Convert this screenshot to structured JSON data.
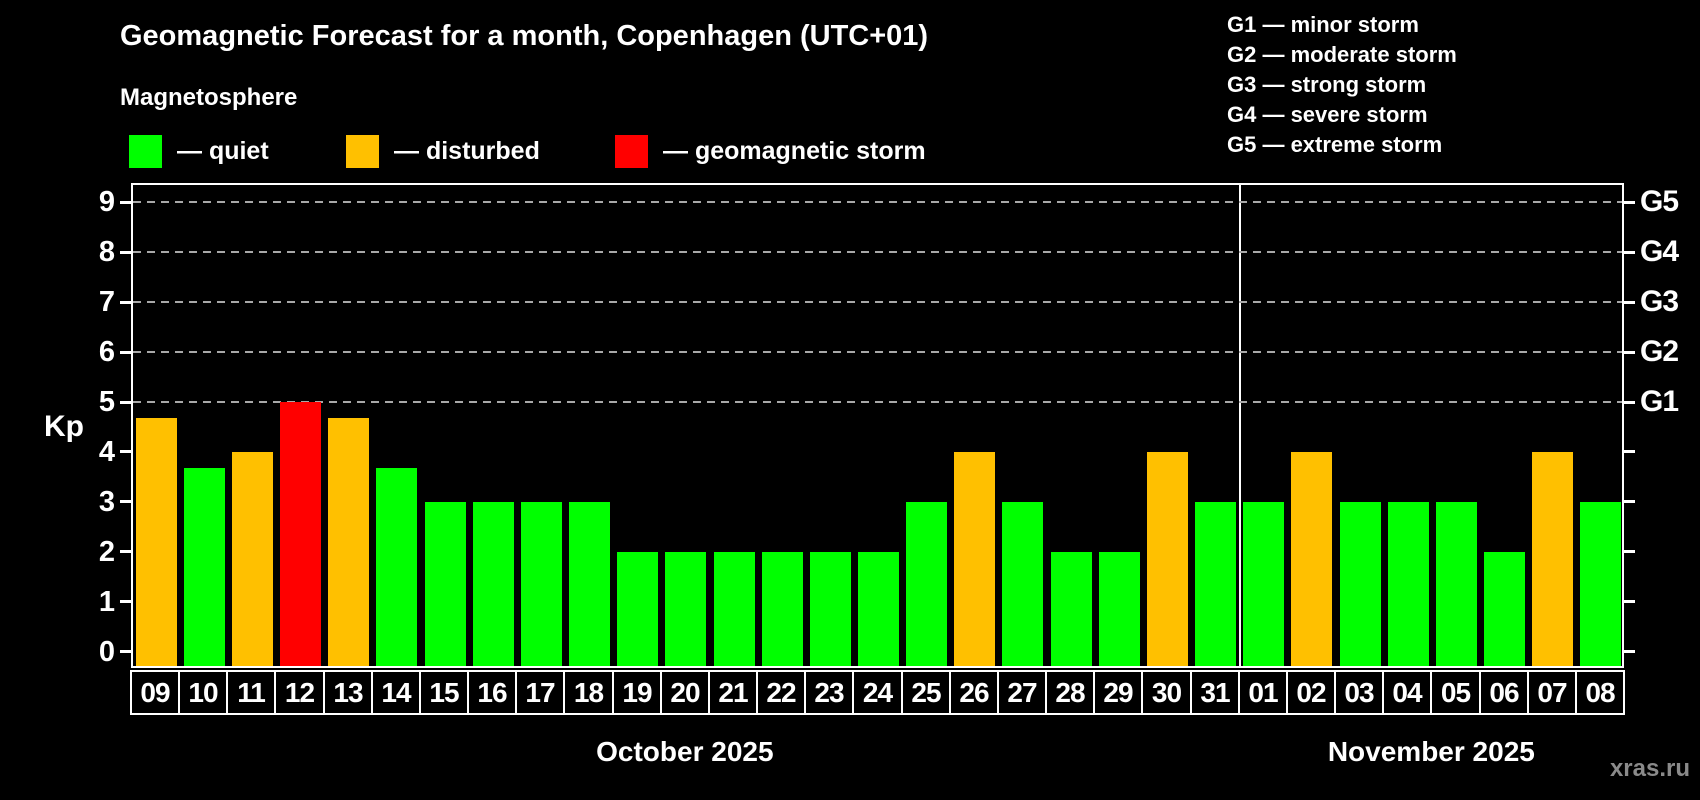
{
  "title": "Geomagnetic Forecast for a month, Copenhagen (UTC+01)",
  "subtitle": "Magnetosphere",
  "watermark": "xras.ru",
  "colors": {
    "quiet": "#00ff00",
    "disturbed": "#ffc000",
    "storm": "#ff0000",
    "axis": "#ffffff",
    "grid": "#a8a8a8",
    "background": "#000000",
    "text": "#ffffff",
    "watermark_color": "#8a8a8a"
  },
  "legend": {
    "items": [
      {
        "key": "quiet",
        "label": "— quiet",
        "color": "#00ff00"
      },
      {
        "key": "disturbed",
        "label": "— disturbed",
        "color": "#ffc000"
      },
      {
        "key": "storm",
        "label": "— geomagnetic storm",
        "color": "#ff0000"
      }
    ]
  },
  "storm_scale_legend": [
    "G1 — minor storm",
    "G2 — moderate storm",
    "G3 — strong storm",
    "G4 — severe storm",
    "G5 — extreme storm"
  ],
  "chart_data": {
    "type": "bar",
    "title": "Geomagnetic Forecast for a month, Copenhagen (UTC+01)",
    "ylabel": "Kp",
    "yticks": [
      0,
      1,
      2,
      3,
      4,
      5,
      6,
      7,
      8,
      9
    ],
    "ylim": [
      -0.33,
      9.4
    ],
    "grid": true,
    "legend_position": "top-left",
    "grid_levels": [
      {
        "kp": 5,
        "label": "G1"
      },
      {
        "kp": 6,
        "label": "G2"
      },
      {
        "kp": 7,
        "label": "G3"
      },
      {
        "kp": 8,
        "label": "G4"
      },
      {
        "kp": 9,
        "label": "G5"
      }
    ],
    "months": [
      {
        "label": "October 2025",
        "days": 23
      },
      {
        "label": "November 2025",
        "days": 8
      }
    ],
    "bars": [
      {
        "date": "09",
        "kp": 4.67,
        "status": "disturbed"
      },
      {
        "date": "10",
        "kp": 3.67,
        "status": "quiet"
      },
      {
        "date": "11",
        "kp": 4,
        "status": "disturbed"
      },
      {
        "date": "12",
        "kp": 5,
        "status": "storm"
      },
      {
        "date": "13",
        "kp": 4.67,
        "status": "disturbed"
      },
      {
        "date": "14",
        "kp": 3.67,
        "status": "quiet"
      },
      {
        "date": "15",
        "kp": 3,
        "status": "quiet"
      },
      {
        "date": "16",
        "kp": 3,
        "status": "quiet"
      },
      {
        "date": "17",
        "kp": 3,
        "status": "quiet"
      },
      {
        "date": "18",
        "kp": 3,
        "status": "quiet"
      },
      {
        "date": "19",
        "kp": 2,
        "status": "quiet"
      },
      {
        "date": "20",
        "kp": 2,
        "status": "quiet"
      },
      {
        "date": "21",
        "kp": 2,
        "status": "quiet"
      },
      {
        "date": "22",
        "kp": 2,
        "status": "quiet"
      },
      {
        "date": "23",
        "kp": 2,
        "status": "quiet"
      },
      {
        "date": "24",
        "kp": 2,
        "status": "quiet"
      },
      {
        "date": "25",
        "kp": 3,
        "status": "quiet"
      },
      {
        "date": "26",
        "kp": 4,
        "status": "disturbed"
      },
      {
        "date": "27",
        "kp": 3,
        "status": "quiet"
      },
      {
        "date": "28",
        "kp": 2,
        "status": "quiet"
      },
      {
        "date": "29",
        "kp": 2,
        "status": "quiet"
      },
      {
        "date": "30",
        "kp": 4,
        "status": "disturbed"
      },
      {
        "date": "31",
        "kp": 3,
        "status": "quiet"
      },
      {
        "date": "01",
        "kp": 3,
        "status": "quiet"
      },
      {
        "date": "02",
        "kp": 4,
        "status": "disturbed"
      },
      {
        "date": "03",
        "kp": 3,
        "status": "quiet"
      },
      {
        "date": "04",
        "kp": 3,
        "status": "quiet"
      },
      {
        "date": "05",
        "kp": 3,
        "status": "quiet"
      },
      {
        "date": "06",
        "kp": 2,
        "status": "quiet"
      },
      {
        "date": "07",
        "kp": 4,
        "status": "disturbed"
      },
      {
        "date": "08",
        "kp": 3,
        "status": "quiet"
      }
    ]
  }
}
